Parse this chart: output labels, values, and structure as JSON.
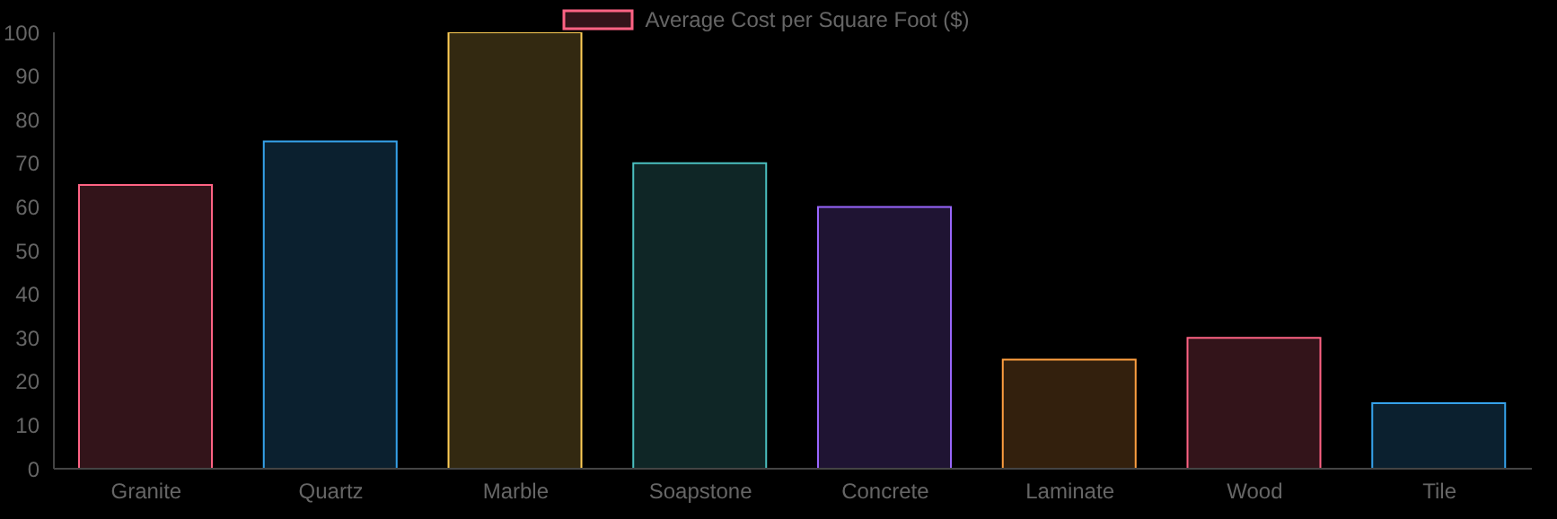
{
  "chart_data": {
    "type": "bar",
    "categories": [
      "Granite",
      "Quartz",
      "Marble",
      "Soapstone",
      "Concrete",
      "Laminate",
      "Wood",
      "Tile"
    ],
    "series": [
      {
        "name": "Average Cost per Square Foot ($)",
        "colors": [
          "#ff6384",
          "#36a2eb",
          "#ffce56",
          "#4bc0c0",
          "#9966ff",
          "#ff9f40",
          "#ff6384",
          "#36a2eb"
        ],
        "values": [
          65,
          75,
          100,
          70,
          60,
          25,
          30,
          15
        ]
      }
    ],
    "ylim": [
      0,
      100
    ],
    "yticks": [
      0,
      10,
      20,
      30,
      40,
      50,
      60,
      70,
      80,
      90,
      100
    ],
    "grid": false,
    "legend": "top"
  }
}
